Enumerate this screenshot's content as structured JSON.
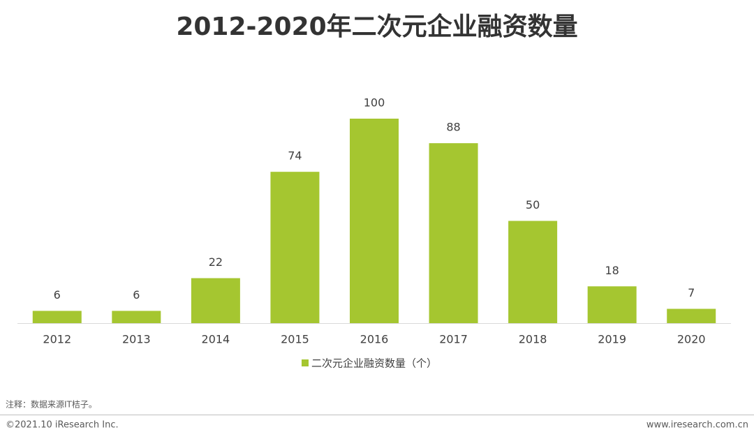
{
  "chart_data": {
    "type": "bar",
    "title": "2012-2020年二次元企业融资数量",
    "categories": [
      "2012",
      "2013",
      "2014",
      "2015",
      "2016",
      "2017",
      "2018",
      "2019",
      "2020"
    ],
    "series": [
      {
        "name": "二次元企业融资数量（个）",
        "color": "#a5c630",
        "values": [
          6,
          6,
          22,
          74,
          100,
          88,
          50,
          18,
          7
        ]
      }
    ],
    "data_labels": true,
    "legend": "bottom"
  },
  "footer": {
    "note": "注释：数据来源IT桔子。",
    "copyright": "©2021.10 iResearch Inc.",
    "website": "www.iresearch.com.cn"
  }
}
